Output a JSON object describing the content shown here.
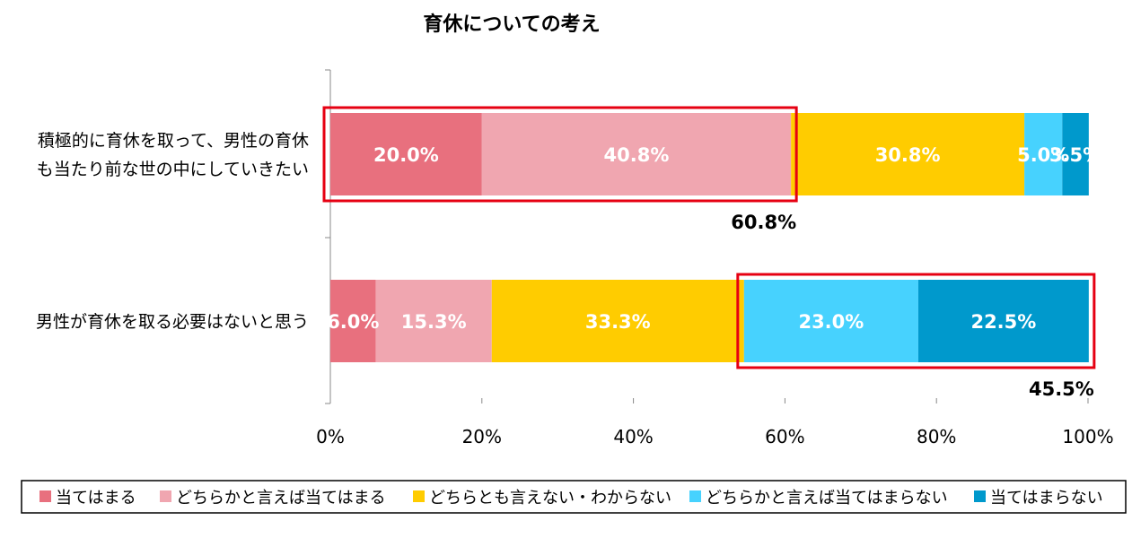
{
  "chart_data": {
    "type": "bar",
    "orientation": "horizontal",
    "stacked": true,
    "title": "育休についての考え",
    "categories": [
      [
        "積極的に育休を取って、男性の育休",
        "も当たり前な世の中にしていきたい"
      ],
      [
        "男性が育休を取る必要はないと思う"
      ]
    ],
    "series": [
      {
        "name": "当てはまる",
        "color": "#E8707E",
        "values": [
          20.0,
          6.0
        ]
      },
      {
        "name": "どちらかと言えば当てはまる",
        "color": "#F0A6B0",
        "values": [
          40.8,
          15.3
        ]
      },
      {
        "name": "どちらとも言えない・わからない",
        "color": "#FFCC00",
        "values": [
          30.8,
          33.3
        ]
      },
      {
        "name": "どちらかと言えば当てはまらない",
        "color": "#47D2FE",
        "values": [
          5.0,
          23.0
        ]
      },
      {
        "name": "当てはまらない",
        "color": "#0099CC",
        "values": [
          3.5,
          22.5
        ]
      }
    ],
    "value_labels": [
      [
        "20.0%",
        "40.8%",
        "30.8%",
        "5.0%",
        "3.5%"
      ],
      [
        "6.0%",
        "15.3%",
        "33.3%",
        "23.0%",
        "22.5%"
      ]
    ],
    "xlim": [
      0,
      100
    ],
    "xticks": [
      "0%",
      "20%",
      "40%",
      "60%",
      "80%",
      "100%"
    ],
    "grid": false,
    "legend": "bottom",
    "highlights": [
      {
        "category_index": 0,
        "series_from": 0,
        "series_to": 1,
        "label": "60.8%",
        "color": "#E60012"
      },
      {
        "category_index": 1,
        "series_from": 3,
        "series_to": 4,
        "label": "45.5%",
        "color": "#E60012"
      }
    ]
  }
}
